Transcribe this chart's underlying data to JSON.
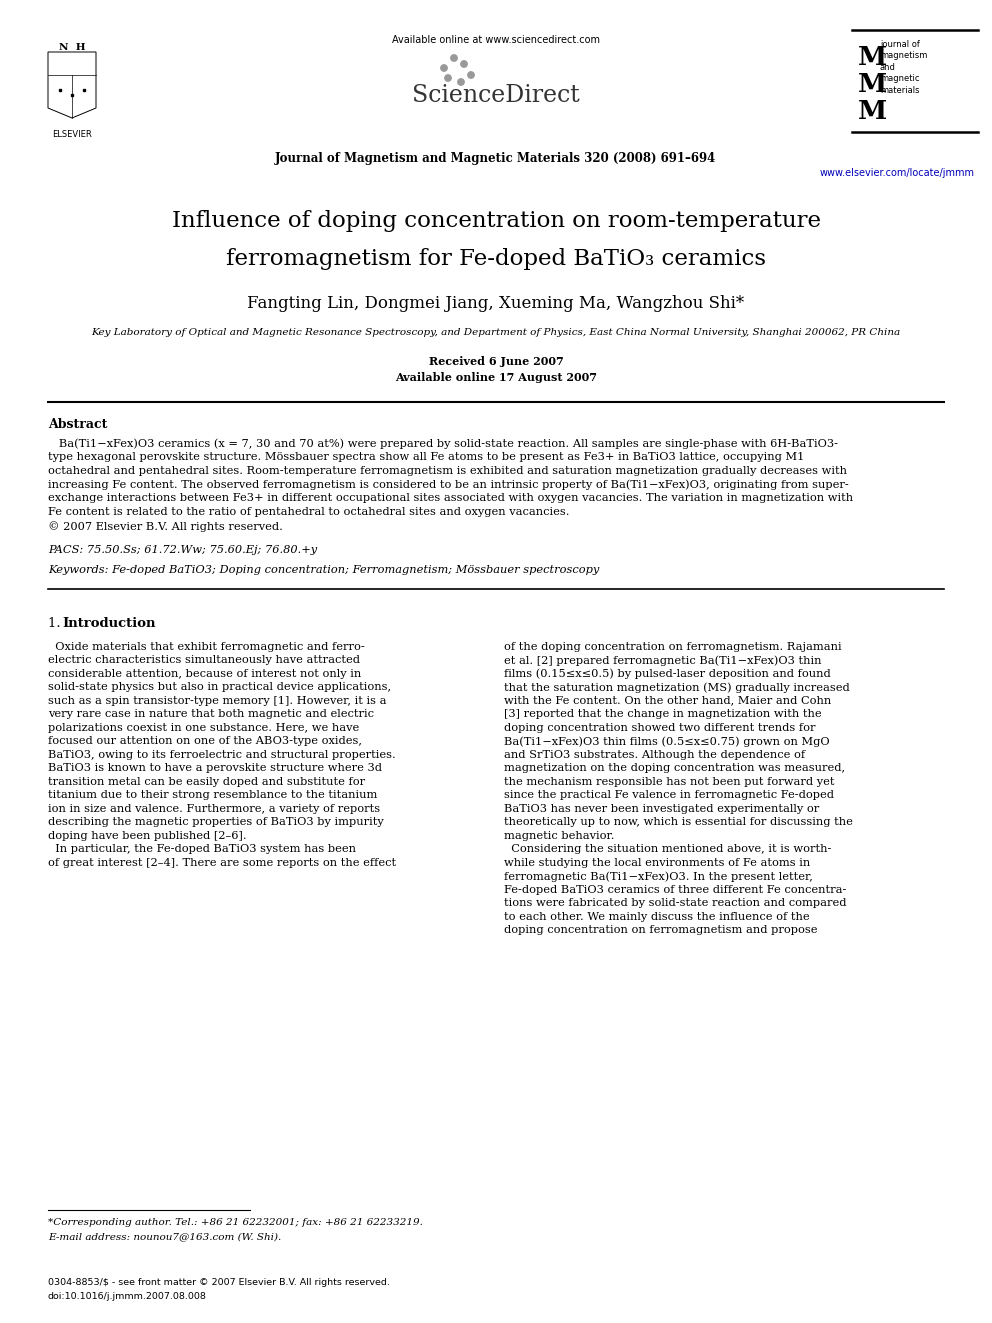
{
  "page_bg": "#ffffff",
  "header_online": "Available online at www.sciencedirect.com",
  "header_journal": "Journal of Magnetism and Magnetic Materials 320 (2008) 691–694",
  "header_website": "www.elsevier.com/locate/jmmm",
  "title_line1": "Influence of doping concentration on room-temperature",
  "title_line2": "ferromagnetism for Fe-doped BaTiO",
  "title_line2b": "3",
  "title_line2c": " ceramics",
  "authors": "Fangting Lin, Dongmei Jiang, Xueming Ma, Wangzhou Shi*",
  "affiliation": "Key Laboratory of Optical and Magnetic Resonance Spectroscopy, and Department of Physics, East China Normal University, Shanghai 200062, PR China",
  "received": "Received 6 June 2007",
  "available_online": "Available online 17 August 2007",
  "abstract_title": "Abstract",
  "abstract_lines": [
    "   Ba(Ti1−xFex)O3 ceramics (x = 7, 30 and 70 at%) were prepared by solid-state reaction. All samples are single-phase with 6H-BaTiO3-",
    "type hexagonal perovskite structure. Mössbauer spectra show all Fe atoms to be present as Fe3+ in BaTiO3 lattice, occupying M1",
    "octahedral and pentahedral sites. Room-temperature ferromagnetism is exhibited and saturation magnetization gradually decreases with",
    "increasing Fe content. The observed ferromagnetism is considered to be an intrinsic property of Ba(Ti1−xFex)O3, originating from super-",
    "exchange interactions between Fe3+ in different occupational sites associated with oxygen vacancies. The variation in magnetization with",
    "Fe content is related to the ratio of pentahedral to octahedral sites and oxygen vacancies.",
    "© 2007 Elsevier B.V. All rights reserved."
  ],
  "pacs": "PACS: 75.50.Ss; 61.72.Ww; 75.60.Ej; 76.80.+y",
  "keywords": "Keywords: Fe-doped BaTiO3; Doping concentration; Ferromagnetism; Mössbauer spectroscopy",
  "section1_title": "1.  Introduction",
  "col1_lines": [
    "  Oxide materials that exhibit ferromagnetic and ferro-",
    "electric characteristics simultaneously have attracted",
    "considerable attention, because of interest not only in",
    "solid-state physics but also in practical device applications,",
    "such as a spin transistor-type memory [1]. However, it is a",
    "very rare case in nature that both magnetic and electric",
    "polarizations coexist in one substance. Here, we have",
    "focused our attention on one of the ABO3-type oxides,",
    "BaTiO3, owing to its ferroelectric and structural properties.",
    "BaTiO3 is known to have a perovskite structure where 3d",
    "transition metal can be easily doped and substitute for",
    "titanium due to their strong resemblance to the titanium",
    "ion in size and valence. Furthermore, a variety of reports",
    "describing the magnetic properties of BaTiO3 by impurity",
    "doping have been published [2–6].",
    "  In particular, the Fe-doped BaTiO3 system has been",
    "of great interest [2–4]. There are some reports on the effect"
  ],
  "col2_lines": [
    "of the doping concentration on ferromagnetism. Rajamani",
    "et al. [2] prepared ferromagnetic Ba(Ti1−xFex)O3 thin",
    "films (0.15≤x≤0.5) by pulsed-laser deposition and found",
    "that the saturation magnetization (MS) gradually increased",
    "with the Fe content. On the other hand, Maier and Cohn",
    "[3] reported that the change in magnetization with the",
    "doping concentration showed two different trends for",
    "Ba(Ti1−xFex)O3 thin films (0.5≤x≤0.75) grown on MgO",
    "and SrTiO3 substrates. Although the dependence of",
    "magnetization on the doping concentration was measured,",
    "the mechanism responsible has not been put forward yet",
    "since the practical Fe valence in ferromagnetic Fe-doped",
    "BaTiO3 has never been investigated experimentally or",
    "theoretically up to now, which is essential for discussing the",
    "magnetic behavior.",
    "  Considering the situation mentioned above, it is worth-",
    "while studying the local environments of Fe atoms in",
    "ferromagnetic Ba(Ti1−xFex)O3. In the present letter,",
    "Fe-doped BaTiO3 ceramics of three different Fe concentra-",
    "tions were fabricated by solid-state reaction and compared",
    "to each other. We mainly discuss the influence of the",
    "doping concentration on ferromagnetism and propose"
  ],
  "footnote1": "*Corresponding author. Tel.: +86 21 62232001; fax: +86 21 62233219.",
  "footnote2": "E-mail address: nounou7@163.com (W. Shi).",
  "footer1": "0304-8853/$ - see front matter © 2007 Elsevier B.V. All rights reserved.",
  "footer2": "doi:10.1016/j.jmmm.2007.08.008"
}
